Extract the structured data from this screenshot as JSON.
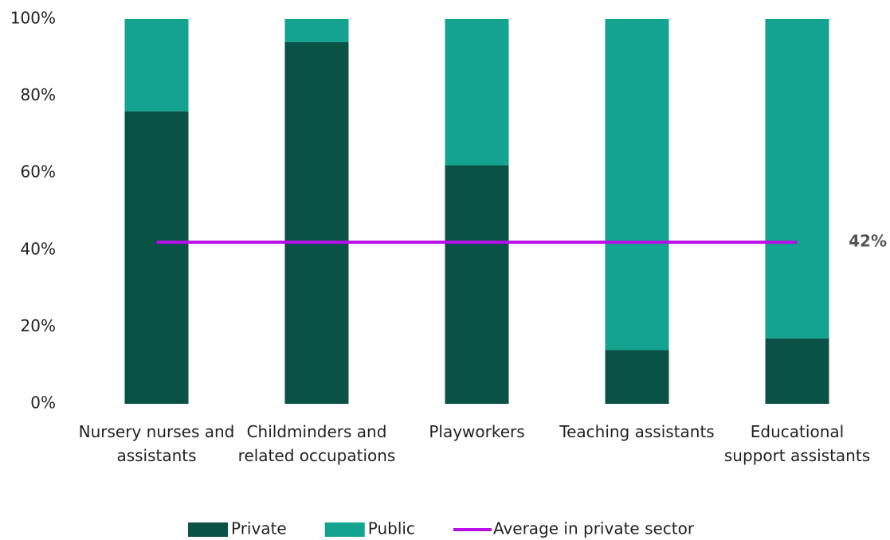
{
  "chart_data": {
    "type": "bar",
    "stacked": true,
    "categories": [
      "Nursery nurses and assistants",
      "Childminders and related occupations",
      "Playworkers",
      "Teaching assistants",
      "Educational support assistants"
    ],
    "series": [
      {
        "name": "Private",
        "color": "#0a5246",
        "values": [
          76,
          94,
          62,
          14,
          17
        ]
      },
      {
        "name": "Public",
        "color": "#13a38e",
        "values": [
          24,
          6,
          38,
          86,
          83
        ]
      }
    ],
    "reference_line": {
      "name": "Average in private sector",
      "color": "#b70fe6",
      "value": 42,
      "value_label": "42%"
    },
    "ylim": [
      0,
      100
    ],
    "yticks": [
      {
        "value": 0,
        "label": "0%"
      },
      {
        "value": 20,
        "label": "20%"
      },
      {
        "value": 40,
        "label": "40%"
      },
      {
        "value": 60,
        "label": "60%"
      },
      {
        "value": 80,
        "label": "80%"
      },
      {
        "value": 100,
        "label": "100%"
      }
    ],
    "legend": "bottom"
  }
}
